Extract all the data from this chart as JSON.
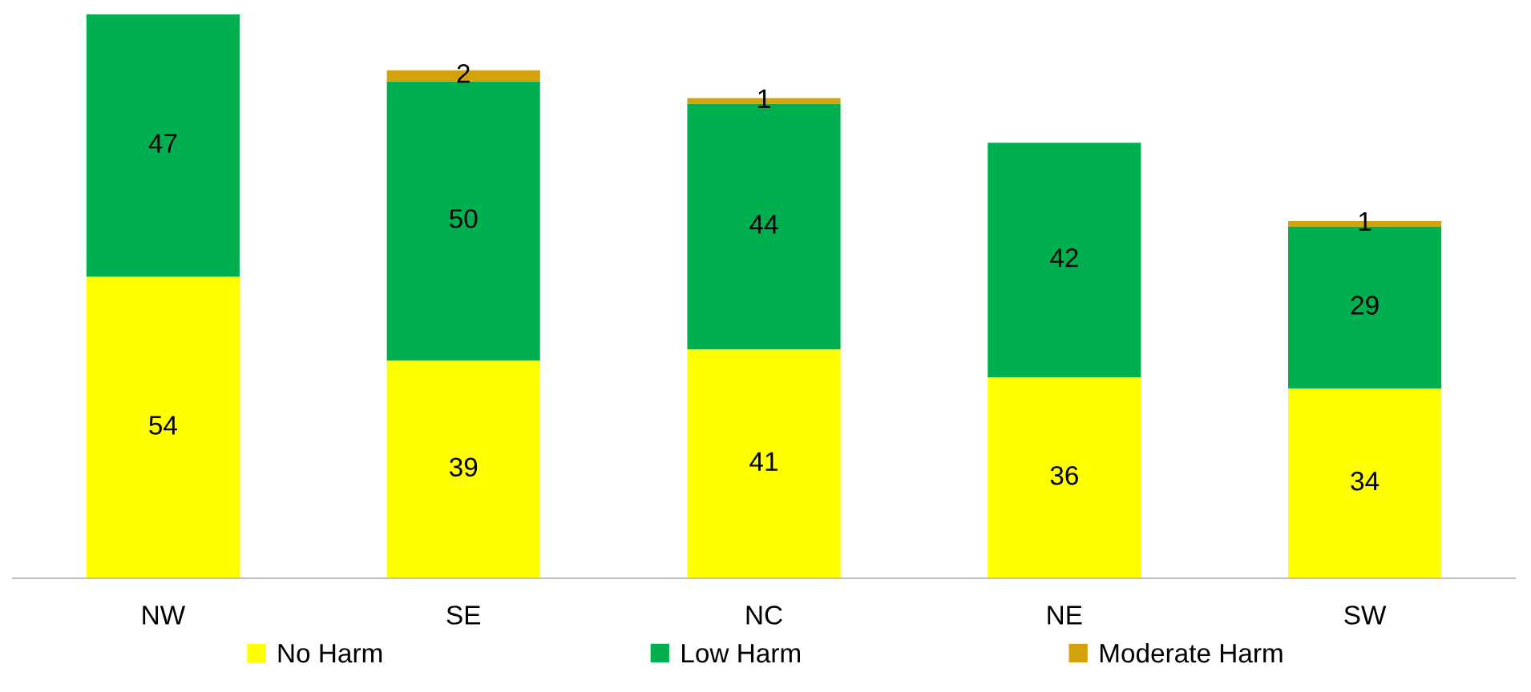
{
  "chart_data": {
    "type": "bar",
    "stacked": true,
    "data_labels": true,
    "legend": "bottom",
    "grid": false,
    "categories": [
      "NW",
      "SE",
      "NC",
      "NE",
      "SW"
    ],
    "series": [
      {
        "name": "No Harm",
        "color": "#ffff00",
        "values": [
          54,
          39,
          41,
          36,
          34
        ]
      },
      {
        "name": "Low Harm",
        "color": "#00b050",
        "values": [
          47,
          50,
          44,
          42,
          29
        ]
      },
      {
        "name": "Moderate Harm",
        "color": "#d4a20a",
        "values": [
          null,
          2,
          1,
          null,
          1
        ]
      }
    ]
  }
}
